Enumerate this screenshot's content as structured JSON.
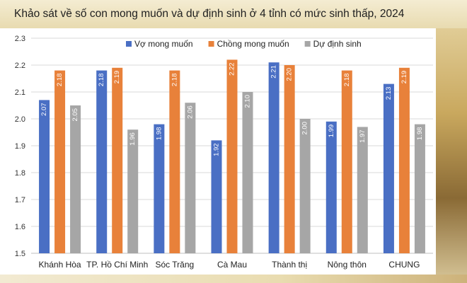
{
  "title": "Khảo sát về số con mong muốn và dự định sinh ở 4 tỉnh có mức sinh thấp, 2024",
  "chart_data": {
    "type": "bar",
    "categories": [
      "Khánh Hòa",
      "TP. Hồ Chí Minh",
      "Sóc Trăng",
      "Cà Mau",
      "Thành thị",
      "Nông thôn",
      "CHUNG"
    ],
    "series": [
      {
        "name": "Vợ mong muốn",
        "color": "#4a6fc4",
        "values": [
          2.07,
          2.18,
          1.98,
          1.92,
          2.21,
          1.99,
          2.13
        ]
      },
      {
        "name": "Chồng mong muốn",
        "color": "#e8813a",
        "values": [
          2.18,
          2.19,
          2.18,
          2.22,
          2.2,
          2.18,
          2.19
        ]
      },
      {
        "name": "Dự định sinh",
        "color": "#a6a6a6",
        "values": [
          2.05,
          1.96,
          2.06,
          2.1,
          2.0,
          1.97,
          1.98
        ]
      }
    ],
    "ylim": [
      1.5,
      2.3
    ],
    "yticks": [
      "1.5",
      "1.6",
      "1.7",
      "1.8",
      "1.9",
      "2.0",
      "2.1",
      "2.2",
      "2.3"
    ],
    "grid": true,
    "legend_position": "top"
  }
}
